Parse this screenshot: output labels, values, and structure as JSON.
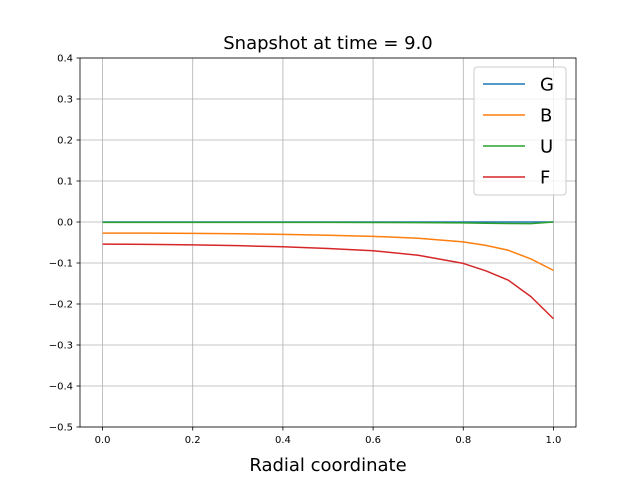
{
  "chart_data": {
    "type": "line",
    "title": "Snapshot at time = 9.0",
    "xlabel": "Radial coordinate",
    "ylabel": "",
    "xlim": [
      -0.05,
      1.05
    ],
    "ylim": [
      -0.5,
      0.4
    ],
    "xticks": [
      0.0,
      0.2,
      0.4,
      0.6,
      0.8,
      1.0
    ],
    "xtick_labels": [
      "0.0",
      "0.2",
      "0.4",
      "0.6",
      "0.8",
      "1.0"
    ],
    "yticks": [
      -0.5,
      -0.4,
      -0.3,
      -0.2,
      -0.1,
      0.0,
      0.1,
      0.2,
      0.3,
      0.4
    ],
    "ytick_labels": [
      "−0.5",
      "−0.4",
      "−0.3",
      "−0.2",
      "−0.1",
      "0.0",
      "0.1",
      "0.2",
      "0.3",
      "0.4"
    ],
    "grid": true,
    "legend_position": "top-right",
    "x": [
      0.0,
      0.1,
      0.2,
      0.3,
      0.4,
      0.5,
      0.6,
      0.7,
      0.8,
      0.85,
      0.9,
      0.95,
      1.0
    ],
    "series": [
      {
        "name": "G",
        "color": "#1f77b4",
        "values": [
          0.0,
          0.0,
          0.0,
          0.0,
          0.0,
          0.0,
          0.0,
          0.0,
          0.0,
          0.0,
          0.0,
          0.0,
          0.0
        ]
      },
      {
        "name": "B",
        "color": "#ff7f0e",
        "values": [
          -0.027,
          -0.0272,
          -0.0278,
          -0.0288,
          -0.0302,
          -0.0322,
          -0.035,
          -0.0395,
          -0.0485,
          -0.057,
          -0.069,
          -0.09,
          -0.118
        ]
      },
      {
        "name": "U",
        "color": "#2ca02c",
        "values": [
          -0.001,
          -0.001,
          -0.001,
          -0.001,
          -0.001,
          -0.001,
          -0.0012,
          -0.0015,
          -0.0022,
          -0.003,
          -0.0038,
          -0.004,
          0.0
        ]
      },
      {
        "name": "F",
        "color": "#d62728",
        "values": [
          -0.054,
          -0.0545,
          -0.0557,
          -0.0577,
          -0.0605,
          -0.0645,
          -0.07,
          -0.081,
          -0.101,
          -0.119,
          -0.142,
          -0.182,
          -0.236
        ]
      }
    ]
  }
}
